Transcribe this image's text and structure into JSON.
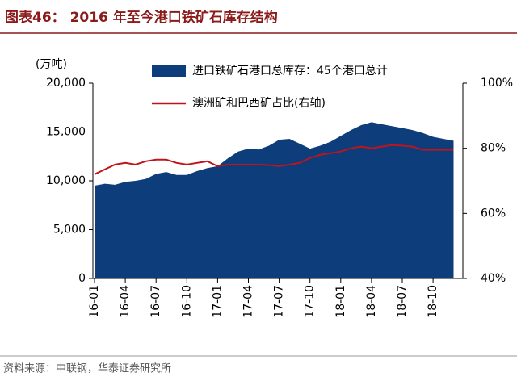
{
  "chart_data": {
    "type": "area-line",
    "title": "图表46：  2016 年至今港口铁矿石库存结构",
    "y_label": "(万吨)",
    "source": "资料来源：中联钢，华泰证券研究所",
    "categories": [
      "16-01",
      null,
      null,
      "16-04",
      null,
      null,
      "16-07",
      null,
      null,
      "16-10",
      null,
      null,
      "17-01",
      null,
      null,
      "17-04",
      null,
      null,
      "17-07",
      null,
      null,
      "17-10",
      null,
      null,
      "18-01",
      null,
      null,
      "18-04",
      null,
      null,
      "18-07",
      null,
      null,
      "18-10",
      null,
      null
    ],
    "series": [
      {
        "name": "进口铁矿石港口总库存：45个港口总计",
        "color": "#0d3d7a",
        "type": "area",
        "values": [
          9500,
          9700,
          9600,
          9900,
          10000,
          10200,
          10700,
          10900,
          10600,
          10600,
          11000,
          11300,
          11500,
          12300,
          13000,
          13300,
          13200,
          13600,
          14200,
          14300,
          13800,
          13300,
          13600,
          14000,
          14600,
          15200,
          15700,
          16000,
          15800,
          15600,
          15400,
          15200,
          14900,
          14500,
          14300,
          14100
        ]
      },
      {
        "name": "澳洲矿和巴西矿占比(右轴)",
        "color": "#c0141c",
        "type": "line",
        "axis": "y2",
        "values": [
          72,
          73.5,
          75,
          75.5,
          75,
          76,
          76.5,
          76.5,
          75.5,
          75,
          75.5,
          76,
          74.5,
          75,
          75,
          75,
          75,
          74.8,
          74.5,
          75,
          75.5,
          77,
          78,
          78.5,
          79,
          80,
          80.5,
          80,
          80.5,
          81,
          80.8,
          80.5,
          79.5,
          79.5,
          79.5,
          79.5
        ]
      }
    ],
    "ylim": [
      0,
      20000
    ],
    "yticks": [
      0,
      {
        "value": 5000,
        "label": "5,000"
      },
      {
        "value": 10000,
        "label": "10,000"
      },
      {
        "value": 15000,
        "label": "15,000"
      },
      {
        "value": 20000,
        "label": "20,000"
      }
    ],
    "y2lim": [
      40,
      100
    ],
    "y2ticks": [
      {
        "value": 40,
        "label": "40%"
      },
      {
        "value": 60,
        "label": "60%"
      },
      {
        "value": 80,
        "label": "80%"
      },
      {
        "value": 100,
        "label": "100%"
      }
    ]
  }
}
